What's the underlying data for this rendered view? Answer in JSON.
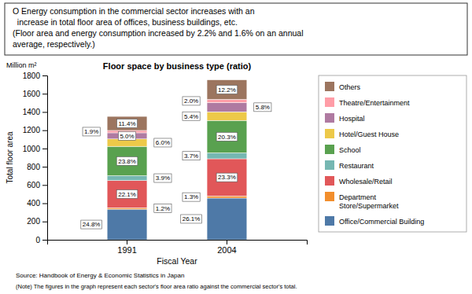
{
  "chart_data": {
    "type": "bar",
    "stacked": true,
    "title": "Floor space by business type (ratio)",
    "subtitle": [
      "O Energy consumption in the commercial sector increases with an",
      "  increase in total floor area of offices, business buildings, etc.",
      "(Floor area and energy consumption increased by 2.2% and 1.6% on an annual",
      "average, respectively.)"
    ],
    "x_label": "Fiscal Year",
    "y_label": "Total floor area",
    "unit_label": "Million m²",
    "source": "Source: Handbook of Energy & Economic Statistics in Japan",
    "note": "(Note) The figures in the graph represent each sector's floor area ratio against the commercial sector's total.",
    "categories": [
      "1991",
      "2004"
    ],
    "series": [
      {
        "name": "Office/Commercial Building",
        "values": [
          334.8,
          456.75
        ],
        "share_labels": [
          "24.8%",
          "26.1%"
        ]
      },
      {
        "name": "Department\nStore/Supermarket",
        "values": [
          16.2,
          22.75
        ],
        "share_labels": [
          "1.2%",
          "1.3%"
        ]
      },
      {
        "name": "Wholesale/Retail",
        "values": [
          298.35,
          407.75
        ],
        "share_labels": [
          "22.1%",
          "23.3%"
        ]
      },
      {
        "name": "Restaurant",
        "values": [
          52.65,
          64.75
        ],
        "share_labels": [
          "3.9%",
          "3.7%"
        ]
      },
      {
        "name": "School",
        "values": [
          321.3,
          355.25
        ],
        "share_labels": [
          "23.8%",
          "20.3%"
        ]
      },
      {
        "name": "Hotel/Guest House",
        "values": [
          81,
          94.5
        ],
        "share_labels": [
          "6.0%",
          "5.4%"
        ]
      },
      {
        "name": "Hospital",
        "values": [
          67.5,
          101.5
        ],
        "share_labels": [
          "5.0%",
          "5.8%"
        ]
      },
      {
        "name": "Theatre/Entertainment",
        "values": [
          25.65,
          35
        ],
        "share_labels": [
          "1.9%",
          "2.0%"
        ]
      },
      {
        "name": "Others",
        "values": [
          153.9,
          213.5
        ],
        "share_labels": [
          "11.4%",
          "12.2%"
        ]
      }
    ],
    "ylim": [
      0,
      1800
    ],
    "yticks": [
      0,
      200,
      400,
      600,
      800,
      1000,
      1200,
      1400,
      1600,
      1800
    ],
    "legend": "right"
  }
}
